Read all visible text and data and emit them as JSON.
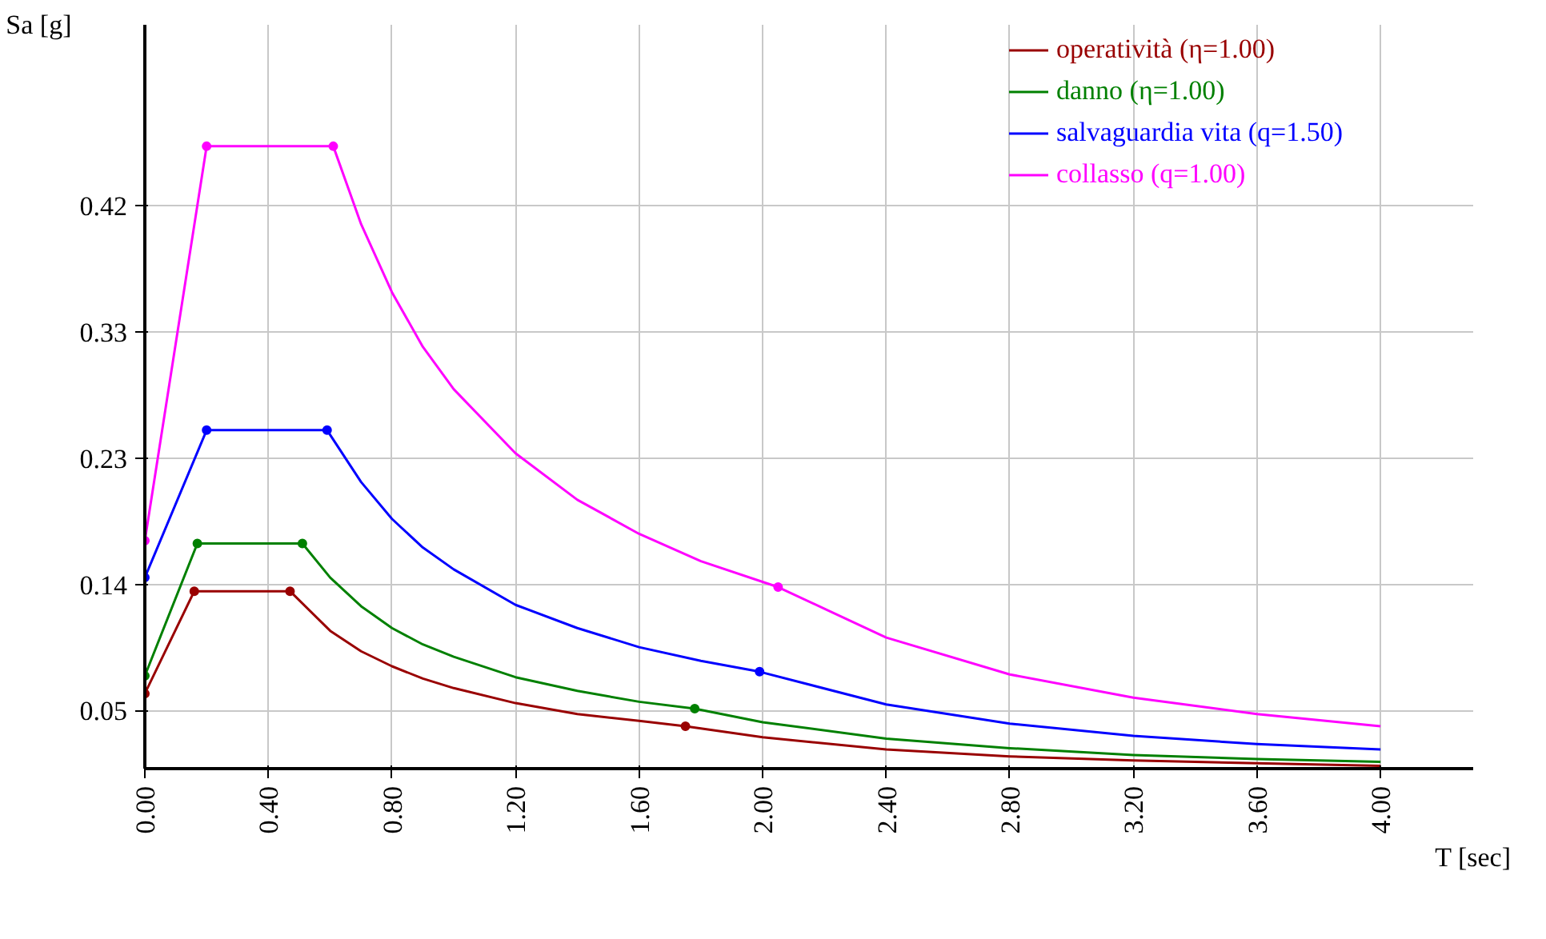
{
  "chart_data": {
    "type": "line",
    "xlabel": "T [sec]",
    "ylabel": "Sa [g]",
    "xlim": [
      0,
      4.3
    ],
    "ylim": [
      0.005,
      0.55
    ],
    "xticks": [
      {
        "value": 0,
        "label": "0.00"
      },
      {
        "value": 0.4,
        "label": "0.40"
      },
      {
        "value": 0.8,
        "label": "0.80"
      },
      {
        "value": 1.2,
        "label": "1.20"
      },
      {
        "value": 1.6,
        "label": "1.60"
      },
      {
        "value": 2.0,
        "label": "2.00"
      },
      {
        "value": 2.4,
        "label": "2.40"
      },
      {
        "value": 2.8,
        "label": "2.80"
      },
      {
        "value": 3.2,
        "label": "3.20"
      },
      {
        "value": 3.6,
        "label": "3.60"
      },
      {
        "value": 4.0,
        "label": "4.00"
      }
    ],
    "yticks": [
      {
        "value": 0.0475,
        "label": "0.05"
      },
      {
        "value": 0.14,
        "label": "0.14"
      },
      {
        "value": 0.2325,
        "label": "0.23"
      },
      {
        "value": 0.325,
        "label": "0.33"
      },
      {
        "value": 0.4175,
        "label": "0.42"
      }
    ],
    "grid": true,
    "legend": "top right",
    "line_style": "solid",
    "series": [
      {
        "name": "operatività (η=1.00)",
        "color": "#990000",
        "x": [
          0,
          0.16,
          0.47,
          0.6,
          0.7,
          0.8,
          0.9,
          1.0,
          1.2,
          1.4,
          1.6,
          1.75,
          2.0,
          2.4,
          2.8,
          3.2,
          3.6,
          4.0
        ],
        "values": [
          0.06,
          0.135,
          0.135,
          0.106,
          0.091,
          0.08,
          0.071,
          0.064,
          0.053,
          0.045,
          0.04,
          0.036,
          0.028,
          0.019,
          0.014,
          0.011,
          0.009,
          0.007
        ]
      },
      {
        "name": "danno (η=1.00)",
        "color": "#008000",
        "x": [
          0,
          0.17,
          0.51,
          0.6,
          0.7,
          0.8,
          0.9,
          1.0,
          1.2,
          1.4,
          1.6,
          1.78,
          2.0,
          2.4,
          2.8,
          3.2,
          3.6,
          4.0
        ],
        "values": [
          0.073,
          0.17,
          0.17,
          0.145,
          0.124,
          0.108,
          0.096,
          0.087,
          0.072,
          0.062,
          0.054,
          0.049,
          0.039,
          0.027,
          0.02,
          0.015,
          0.012,
          0.01
        ]
      },
      {
        "name": "salvaguardia vita (q=1.50)",
        "color": "#0000ff",
        "x": [
          0,
          0.2,
          0.59,
          0.7,
          0.8,
          0.9,
          1.0,
          1.2,
          1.4,
          1.6,
          1.8,
          1.99,
          2.4,
          2.8,
          3.2,
          3.6,
          4.0
        ],
        "values": [
          0.145,
          0.253,
          0.253,
          0.215,
          0.188,
          0.167,
          0.151,
          0.125,
          0.108,
          0.094,
          0.084,
          0.076,
          0.052,
          0.038,
          0.029,
          0.023,
          0.019
        ]
      },
      {
        "name": "collasso (q=1.00)",
        "color": "#ff00ff",
        "x": [
          0,
          0.2,
          0.61,
          0.7,
          0.8,
          0.9,
          1.0,
          1.2,
          1.4,
          1.6,
          1.8,
          2.05,
          2.4,
          2.8,
          3.2,
          3.6,
          4.0
        ],
        "values": [
          0.172,
          0.461,
          0.461,
          0.404,
          0.354,
          0.314,
          0.283,
          0.236,
          0.202,
          0.177,
          0.157,
          0.138,
          0.101,
          0.074,
          0.057,
          0.045,
          0.036
        ]
      },
      {
        "type": "scatter",
        "marker": "circle",
        "color": "#990000",
        "x": [
          0,
          0.16,
          0.47,
          1.75
        ],
        "values": [
          0.06,
          0.135,
          0.135,
          0.036
        ]
      },
      {
        "type": "scatter",
        "marker": "circle",
        "color": "#008000",
        "x": [
          0,
          0.17,
          0.51,
          1.78
        ],
        "values": [
          0.073,
          0.17,
          0.17,
          0.049
        ]
      },
      {
        "type": "scatter",
        "marker": "circle",
        "color": "#0000ff",
        "x": [
          0,
          0.2,
          0.59,
          1.99
        ],
        "values": [
          0.145,
          0.253,
          0.253,
          0.076
        ]
      },
      {
        "type": "scatter",
        "marker": "circle",
        "color": "#ff00ff",
        "x": [
          0,
          0.2,
          0.61,
          2.05
        ],
        "values": [
          0.172,
          0.461,
          0.461,
          0.138
        ]
      }
    ]
  }
}
